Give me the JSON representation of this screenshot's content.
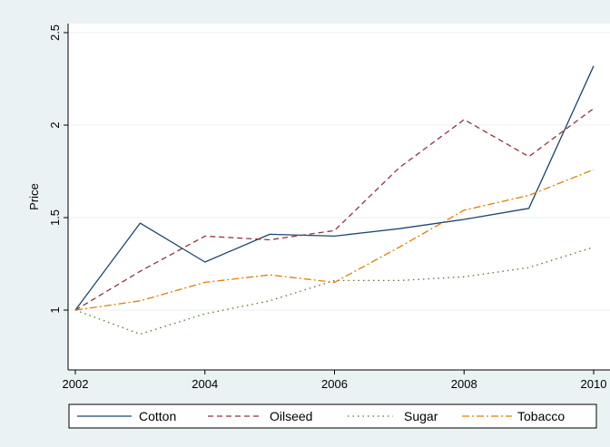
{
  "chart_data": {
    "type": "line",
    "title": "",
    "xlabel": "",
    "ylabel": "Price",
    "xlim": [
      2002,
      2010
    ],
    "ylim": [
      0.7,
      2.55
    ],
    "x_ticks": [
      2002,
      2004,
      2006,
      2008,
      2010
    ],
    "x_tick_labels": [
      "2002",
      "2004",
      "2006",
      "2008",
      "2010"
    ],
    "y_ticks": [
      1,
      1.5,
      2,
      2.5
    ],
    "y_tick_labels": [
      "1",
      "1.5",
      "2",
      "2.5"
    ],
    "grid": "horizontal",
    "legend_position": "bottom",
    "x": [
      2002,
      2003,
      2004,
      2005,
      2006,
      2007,
      2008,
      2009,
      2010
    ],
    "series": [
      {
        "name": "Cotton",
        "color": "#1a476f",
        "dash": "solid",
        "values": [
          1.0,
          1.47,
          1.26,
          1.41,
          1.4,
          1.44,
          1.49,
          1.55,
          2.32
        ]
      },
      {
        "name": "Oilseed",
        "color": "#90353b",
        "dash": "dash",
        "values": [
          1.0,
          1.21,
          1.4,
          1.38,
          1.43,
          1.77,
          2.03,
          1.83,
          2.09
        ]
      },
      {
        "name": "Sugar",
        "color": "#55752f",
        "dash": "dot",
        "values": [
          1.0,
          0.87,
          0.98,
          1.05,
          1.16,
          1.16,
          1.18,
          1.23,
          1.34
        ]
      },
      {
        "name": "Tobacco",
        "color": "#e37e00",
        "dash": "dashdot",
        "values": [
          1.0,
          1.05,
          1.15,
          1.19,
          1.15,
          1.34,
          1.54,
          1.62,
          1.76
        ]
      }
    ]
  }
}
